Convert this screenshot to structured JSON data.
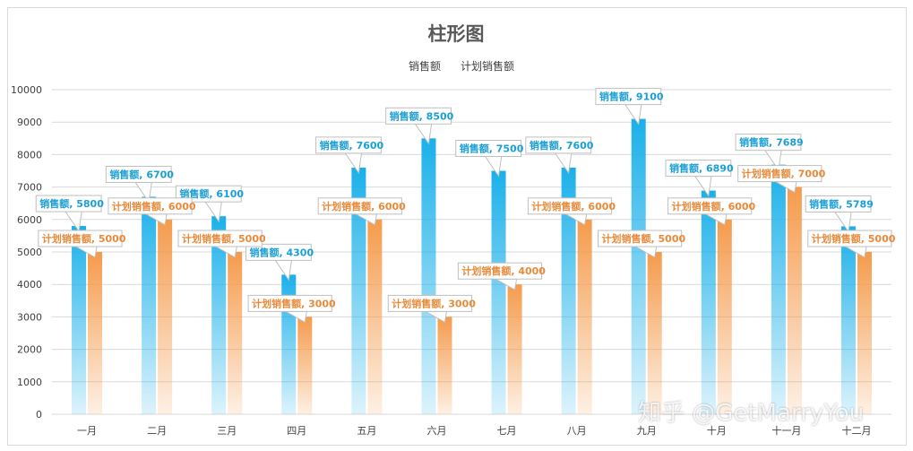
{
  "chart_data": {
    "type": "bar",
    "title": "柱形图",
    "categories": [
      "一月",
      "二月",
      "三月",
      "四月",
      "五月",
      "六月",
      "七月",
      "八月",
      "九月",
      "十月",
      "十一月",
      "十二月"
    ],
    "series": [
      {
        "name": "销售额",
        "color": "#1ab0ea",
        "values": [
          5800,
          6700,
          6100,
          4300,
          7600,
          8500,
          7500,
          7600,
          9100,
          6890,
          7689,
          5789
        ]
      },
      {
        "name": "计划销售额",
        "color": "#f59b4c",
        "values": [
          5000,
          6000,
          5000,
          3000,
          6000,
          3000,
          4000,
          6000,
          5000,
          6000,
          7000,
          5000
        ]
      }
    ],
    "ylim": [
      0,
      10000
    ],
    "yticks": [
      0,
      1000,
      2000,
      3000,
      4000,
      5000,
      6000,
      7000,
      8000,
      9000,
      10000
    ],
    "grid": true,
    "legend": "top",
    "data_labels": "callout: series name, value"
  },
  "watermark": "知乎 @GetMarryYou"
}
